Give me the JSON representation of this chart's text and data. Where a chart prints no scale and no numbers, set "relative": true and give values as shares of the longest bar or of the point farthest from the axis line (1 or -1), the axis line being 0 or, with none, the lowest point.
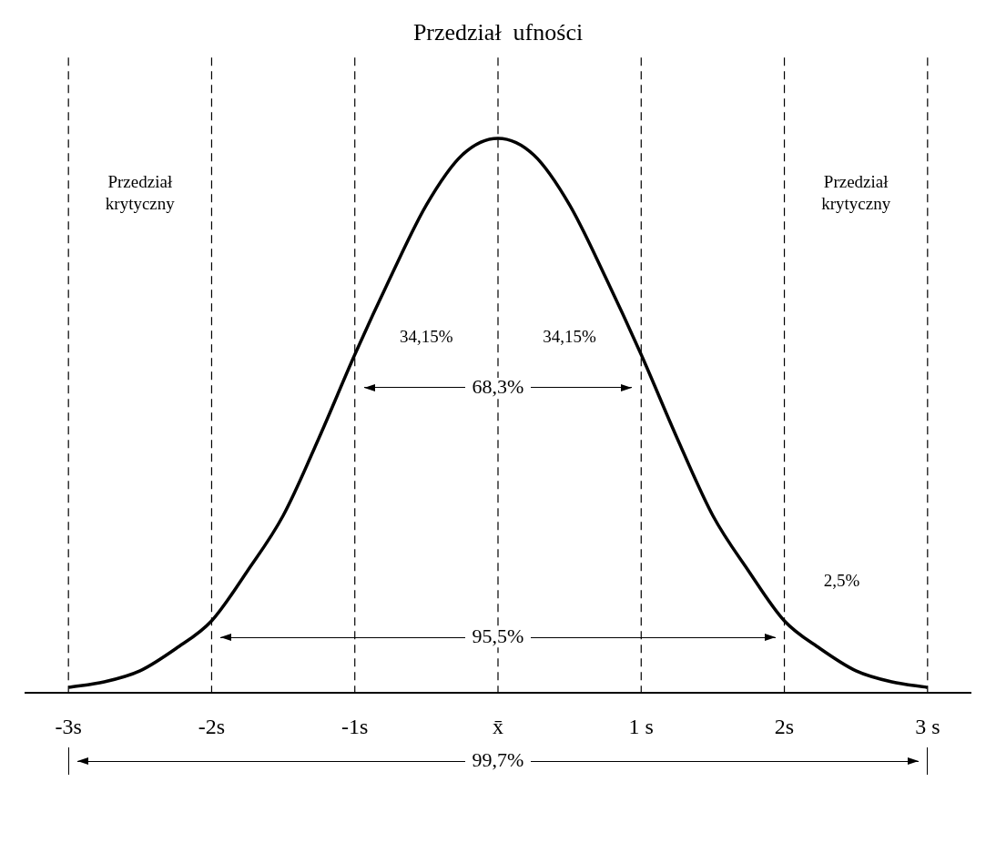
{
  "chart_data": {
    "type": "line",
    "title": "Przedział  ufności",
    "relative": true,
    "x": [
      -3,
      -2.75,
      -2.5,
      -2.25,
      -2,
      -1.75,
      -1.5,
      -1.25,
      -1,
      -0.75,
      -0.5,
      -0.25,
      0,
      0.25,
      0.5,
      0.75,
      1,
      1.25,
      1.5,
      1.75,
      2,
      2.25,
      2.5,
      2.75,
      3
    ],
    "series": [
      {
        "color": "#000000",
        "values": [
          0.01,
          0.02,
          0.04,
          0.08,
          0.13,
          0.22,
          0.32,
          0.46,
          0.61,
          0.75,
          0.88,
          0.97,
          1,
          0.97,
          0.88,
          0.75,
          0.61,
          0.46,
          0.32,
          0.22,
          0.13,
          0.08,
          0.04,
          0.02,
          0.01
        ]
      }
    ],
    "xlim": [
      -3.3,
      3.3
    ],
    "xticks": [
      {
        "value": -3,
        "label": "-3s"
      },
      {
        "value": -2,
        "label": "-2s"
      },
      {
        "value": -1,
        "label": "-1s"
      },
      {
        "value": 0,
        "label": "x̄"
      },
      {
        "value": 1,
        "label": "1 s"
      },
      {
        "value": 2,
        "label": "2s"
      },
      {
        "value": 3,
        "label": "3 s"
      }
    ],
    "ref_lines": [
      {
        "axis": "x",
        "value": -3,
        "color": "#000000",
        "line_style": "dashed"
      },
      {
        "axis": "x",
        "value": -2,
        "color": "#000000",
        "line_style": "dashed"
      },
      {
        "axis": "x",
        "value": -1,
        "color": "#000000",
        "line_style": "dashed"
      },
      {
        "axis": "x",
        "value": 0,
        "color": "#000000",
        "line_style": "dashed"
      },
      {
        "axis": "x",
        "value": 1,
        "color": "#000000",
        "line_style": "dashed"
      },
      {
        "axis": "x",
        "value": 2,
        "color": "#000000",
        "line_style": "dashed"
      },
      {
        "axis": "x",
        "value": 3,
        "color": "#000000",
        "line_style": "dashed"
      }
    ],
    "annotations": [
      "Przedział krytyczny",
      "Przedział krytyczny",
      "34,15%",
      "34,15%",
      "2,5%",
      "68,3%",
      "95,5%",
      "99,7%"
    ],
    "grid": false,
    "marker": "none",
    "line_style": "solid"
  }
}
